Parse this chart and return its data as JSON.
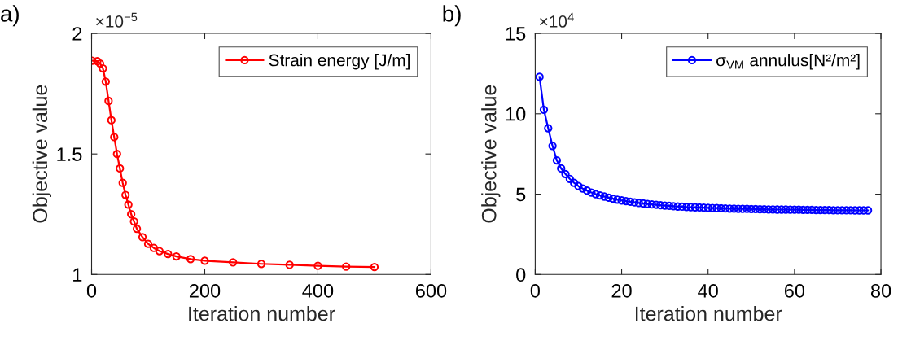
{
  "chart_data": [
    {
      "type": "line",
      "xlabel": "Iteration number",
      "ylabel": "Objective value",
      "annotations": [
        "a)",
        "×10$^{−5}$"
      ],
      "xlim": [
        0,
        600
      ],
      "xticks": [
        0,
        200,
        400,
        600
      ],
      "ylim": [
        1,
        2
      ],
      "yticks": [
        1,
        1.5,
        2
      ],
      "legend": "top right",
      "marker": "circle",
      "line_style": "solid",
      "series": [
        {
          "name": "Strain energy [J/m]",
          "color": "#ff0000",
          "x": [
            1,
            10,
            15,
            20,
            25,
            30,
            35,
            40,
            45,
            50,
            55,
            60,
            65,
            70,
            75,
            80,
            90,
            100,
            110,
            120,
            135,
            150,
            175,
            200,
            250,
            300,
            350,
            400,
            450,
            500
          ],
          "values": [
            1.887,
            1.885,
            1.875,
            1.855,
            1.8,
            1.72,
            1.64,
            1.57,
            1.5,
            1.44,
            1.38,
            1.33,
            1.29,
            1.25,
            1.22,
            1.19,
            1.155,
            1.127,
            1.11,
            1.097,
            1.085,
            1.075,
            1.064,
            1.057,
            1.05,
            1.044,
            1.04,
            1.036,
            1.033,
            1.031
          ]
        }
      ]
    },
    {
      "type": "line",
      "xlabel": "Iteration number",
      "ylabel": "Objective value",
      "annotations": [
        "b)",
        "×10$^{4}$"
      ],
      "xlim": [
        0,
        80
      ],
      "xticks": [
        0,
        20,
        40,
        60,
        80
      ],
      "ylim": [
        0,
        15
      ],
      "yticks": [
        0,
        5,
        10,
        15
      ],
      "legend": "top right",
      "marker": "circle",
      "line_style": "solid",
      "series": [
        {
          "name": "σ$_{VM}$ annulus[N²/m²]",
          "color": "#0000ff",
          "x": [
            1,
            2,
            3,
            4,
            5,
            6,
            7,
            8,
            9,
            10,
            11,
            12,
            13,
            14,
            15,
            16,
            17,
            18,
            19,
            20,
            21,
            22,
            23,
            24,
            25,
            26,
            27,
            28,
            29,
            30,
            31,
            32,
            33,
            34,
            35,
            36,
            37,
            38,
            39,
            40,
            41,
            42,
            43,
            44,
            45,
            46,
            47,
            48,
            49,
            50,
            51,
            52,
            53,
            54,
            55,
            56,
            57,
            58,
            59,
            60,
            61,
            62,
            63,
            64,
            65,
            66,
            67,
            68,
            69,
            70,
            71,
            72,
            73,
            74,
            75,
            76,
            77
          ],
          "values": [
            12.3,
            10.25,
            9.1,
            8.0,
            7.1,
            6.6,
            6.25,
            5.95,
            5.7,
            5.5,
            5.35,
            5.22,
            5.1,
            5.0,
            4.92,
            4.85,
            4.78,
            4.72,
            4.66,
            4.61,
            4.57,
            4.53,
            4.49,
            4.45,
            4.42,
            4.39,
            4.36,
            4.34,
            4.31,
            4.29,
            4.27,
            4.25,
            4.23,
            4.22,
            4.2,
            4.19,
            4.18,
            4.17,
            4.16,
            4.15,
            4.14,
            4.13,
            4.12,
            4.11,
            4.1,
            4.1,
            4.09,
            4.08,
            4.08,
            4.07,
            4.07,
            4.06,
            4.06,
            4.05,
            4.05,
            4.04,
            4.04,
            4.04,
            4.03,
            4.03,
            4.03,
            4.02,
            4.02,
            4.02,
            4.01,
            4.01,
            4.01,
            4.01,
            4.0,
            4.0,
            4.0,
            4.0,
            4.0,
            3.99,
            3.99,
            3.99,
            3.99
          ]
        }
      ]
    }
  ]
}
